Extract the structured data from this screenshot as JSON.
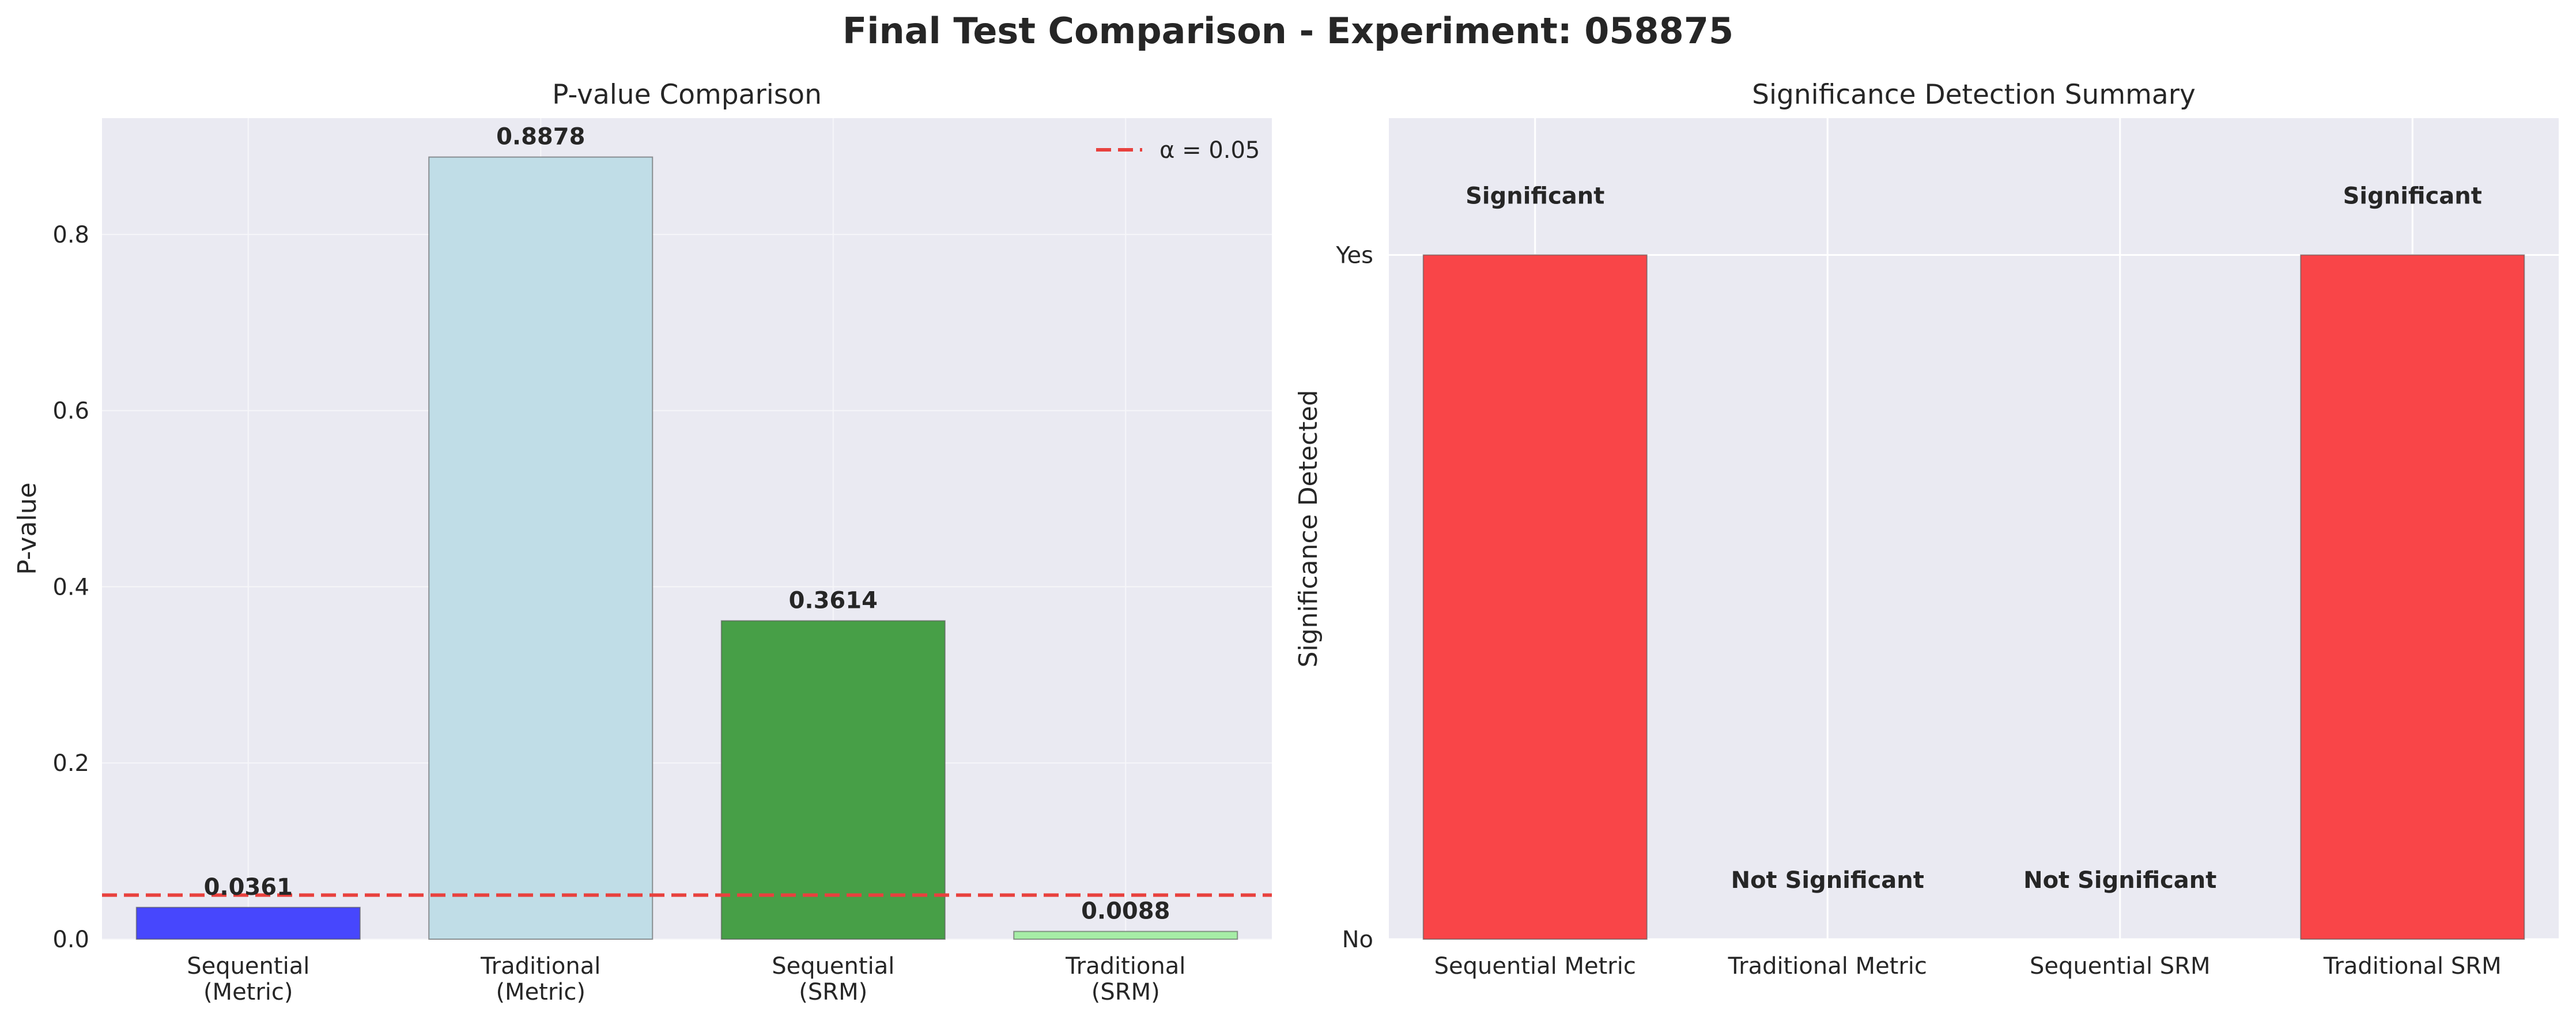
{
  "figure_title": "Final Test Comparison - Experiment: 058875",
  "chart_data": [
    {
      "type": "bar",
      "title": "P-value Comparison",
      "xlabel": "",
      "ylabel": "P-value",
      "categories": [
        [
          "Sequential",
          "(Metric)"
        ],
        [
          "Traditional",
          "(Metric)"
        ],
        [
          "Sequential",
          "(SRM)"
        ],
        [
          "Traditional",
          "(SRM)"
        ]
      ],
      "values": [
        0.0361,
        0.8878,
        0.3614,
        0.0088
      ],
      "value_labels": [
        "0.0361",
        "0.8878",
        "0.3614",
        "0.0088"
      ],
      "colors": [
        "#4747fd",
        "#c0dde7",
        "#479f47",
        "#a6eda6"
      ],
      "ylim": [
        0,
        0.932
      ],
      "yticks": [
        0.0,
        0.2,
        0.4,
        0.6,
        0.8
      ],
      "ytick_labels": [
        "0.0",
        "0.2",
        "0.4",
        "0.6",
        "0.8"
      ],
      "reference_line": {
        "value": 0.05,
        "label": "α = 0.05",
        "color": "#e8413e",
        "style": "dashed"
      },
      "legend_position": "top-right",
      "grid": true
    },
    {
      "type": "bar",
      "title": "Significance Detection Summary",
      "xlabel": "",
      "ylabel": "Significance Detected",
      "categories": [
        "Sequential Metric",
        "Traditional Metric",
        "Sequential SRM",
        "Traditional SRM"
      ],
      "values": [
        1,
        0,
        0,
        1
      ],
      "value_labels": [
        "Significant",
        "Not Significant",
        "Not Significant",
        "Significant"
      ],
      "colors": [
        "#f94548",
        "#f94548",
        "#f94548",
        "#f94548"
      ],
      "ylim": [
        0,
        1.2
      ],
      "yticks": [
        0,
        1
      ],
      "ytick_labels": [
        "No",
        "Yes"
      ],
      "grid": true
    }
  ]
}
